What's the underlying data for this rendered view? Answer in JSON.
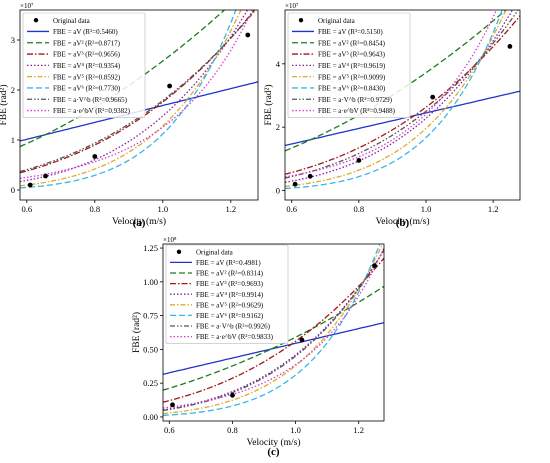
{
  "chart_data": [
    {
      "type": "scatter",
      "panel_label": "(a)",
      "xlabel": "Velocity (m/s)",
      "ylabel": "FBE (rad²)",
      "y_multiplier": "×10⁷",
      "xlim": [
        0.58,
        1.28
      ],
      "ylim": [
        -0.2,
        3.6
      ],
      "x_ticks": [
        0.6,
        0.8,
        1.0,
        1.2
      ],
      "y_ticks": [
        0,
        1,
        2,
        3
      ],
      "legend_position": "top-left",
      "points": {
        "name": "Original data",
        "x": [
          0.61,
          0.655,
          0.8,
          1.02,
          1.25
        ],
        "y": [
          0.1,
          0.28,
          0.67,
          2.08,
          3.1
        ]
      },
      "series": [
        {
          "name": "FBE = aV (R²=0.5460)",
          "a": 1.69,
          "form": "power",
          "p": 1,
          "color": "#1f35c9",
          "dash": ""
        },
        {
          "name": "FBE = aV² (R²=0.8717)",
          "a": 2.58,
          "form": "power",
          "p": 2,
          "color": "#1d7a1d",
          "dash": "6,3"
        },
        {
          "name": "FBE = aV³ (R²=0.9656)",
          "a": 1.76,
          "form": "power",
          "p": 3,
          "color": "#a01818",
          "dash": "6,2,1.5,2"
        },
        {
          "name": "FBE = aV⁴ (R²=0.9354)",
          "a": 1.48,
          "form": "power",
          "p": 4,
          "color": "#8a1fa6",
          "dash": "1.5,2"
        },
        {
          "name": "FBE = aV⁵ (R²=0.8592)",
          "a": 1.28,
          "form": "power",
          "p": 5,
          "color": "#e0a92a",
          "dash": "5,2,1.5,2"
        },
        {
          "name": "FBE = aV⁶ (R²=0.7730)",
          "a": 1.12,
          "form": "power",
          "p": 6,
          "color": "#37b8e8",
          "dash": "6,3"
        },
        {
          "name": "FBE = a·V^b (R²=0.9665)",
          "a": 1.79,
          "form": "power",
          "p": 2.9,
          "color": "#555555",
          "dash": "5,2,1.5,2,1.5,2"
        },
        {
          "name": "FBE = a·e^bV (R²=0.9382)",
          "a": 0.023,
          "form": "exp",
          "p": 4.0,
          "color": "#d23ed8",
          "dash": "1.5,2"
        }
      ]
    },
    {
      "type": "scatter",
      "panel_label": "(b)",
      "xlabel": "Velocity (m/s)",
      "ylabel": "FBE (rad²)",
      "y_multiplier": "×10⁷",
      "xlim": [
        0.58,
        1.28
      ],
      "ylim": [
        -0.3,
        5.7
      ],
      "x_ticks": [
        0.6,
        0.8,
        1.0,
        1.2
      ],
      "y_ticks": [
        0,
        2,
        4
      ],
      "legend_position": "top-left",
      "points": {
        "name": "Original data",
        "x": [
          0.61,
          0.655,
          0.8,
          1.02,
          1.25
        ],
        "y": [
          0.2,
          0.45,
          0.95,
          2.95,
          4.55
        ]
      },
      "series": [
        {
          "name": "FBE = aV (R²=0.5150)",
          "a": 2.45,
          "form": "power",
          "p": 1,
          "color": "#1f35c9",
          "dash": ""
        },
        {
          "name": "FBE = aV² (R²=0.8454)",
          "a": 3.72,
          "form": "power",
          "p": 2,
          "color": "#1d7a1d",
          "dash": "6,3"
        },
        {
          "name": "FBE = aV³ (R²=0.9643)",
          "a": 2.63,
          "form": "power",
          "p": 3,
          "color": "#a01818",
          "dash": "6,2,1.5,2"
        },
        {
          "name": "FBE = aV⁴ (R²=0.9619)",
          "a": 2.28,
          "form": "power",
          "p": 4,
          "color": "#8a1fa6",
          "dash": "1.5,2"
        },
        {
          "name": "FBE = aV⁵ (R²=0.9099)",
          "a": 1.96,
          "form": "power",
          "p": 5,
          "color": "#e0a92a",
          "dash": "5,2,1.5,2"
        },
        {
          "name": "FBE = aV⁶ (R²=0.8430)",
          "a": 1.67,
          "form": "power",
          "p": 6,
          "color": "#37b8e8",
          "dash": "6,3"
        },
        {
          "name": "FBE = a·V^b (R²=0.9729)",
          "a": 2.5,
          "form": "power",
          "p": 3.4,
          "color": "#555555",
          "dash": "5,2,1.5,2,1.5,2"
        },
        {
          "name": "FBE = a·e^bV (R²=0.9488)",
          "a": 0.04,
          "form": "exp",
          "p": 4.1,
          "color": "#d23ed8",
          "dash": "1.5,2"
        }
      ]
    },
    {
      "type": "scatter",
      "panel_label": "(c)",
      "xlabel": "Velocity (m/s)",
      "ylabel": "FBE (rad²)",
      "y_multiplier": "×10⁸",
      "xlim": [
        0.58,
        1.28
      ],
      "ylim": [
        -0.03,
        1.28
      ],
      "x_ticks": [
        0.6,
        0.8,
        1.0,
        1.2
      ],
      "y_ticks": [
        0.0,
        0.25,
        0.5,
        0.75,
        1.0,
        1.25
      ],
      "y_tick_labels": [
        "0.00",
        "0.25",
        "0.50",
        "0.75",
        "1.00",
        "1.25"
      ],
      "legend_position": "top-left",
      "points": {
        "name": "Original data",
        "x": [
          0.61,
          0.8,
          1.02,
          1.25
        ],
        "y": [
          0.09,
          0.16,
          0.57,
          1.12
        ]
      },
      "series": [
        {
          "name": "FBE = aV (R²=0.4981)",
          "a": 0.545,
          "form": "power",
          "p": 1,
          "color": "#1f35c9",
          "dash": ""
        },
        {
          "name": "FBE = aV² (R²=0.8314)",
          "a": 0.59,
          "form": "power",
          "p": 2,
          "color": "#1d7a1d",
          "dash": "6,3"
        },
        {
          "name": "FBE = aV³ (R²=0.9693)",
          "a": 0.56,
          "form": "power",
          "p": 3,
          "color": "#a01818",
          "dash": "6,2,1.5,2"
        },
        {
          "name": "FBE = aV⁴ (R²=0.9914)",
          "a": 0.46,
          "form": "power",
          "p": 4,
          "color": "#8a1fa6",
          "dash": "1.5,2"
        },
        {
          "name": "FBE = aV⁵ (R²=0.9629)",
          "a": 0.38,
          "form": "power",
          "p": 5,
          "color": "#e0a92a",
          "dash": "5,2,1.5,2"
        },
        {
          "name": "FBE = aV⁶ (R²=0.9162)",
          "a": 0.31,
          "form": "power",
          "p": 6,
          "color": "#37b8e8",
          "dash": "6,3"
        },
        {
          "name": "FBE = a·V^b (R²=0.9926)",
          "a": 0.45,
          "form": "power",
          "p": 4.1,
          "color": "#555555",
          "dash": "5,2,1.5,2,1.5,2"
        },
        {
          "name": "FBE = a·e^bV (R²=0.9833)",
          "a": 0.0058,
          "form": "exp",
          "p": 4.2,
          "color": "#d23ed8",
          "dash": "1.5,2"
        }
      ]
    }
  ]
}
